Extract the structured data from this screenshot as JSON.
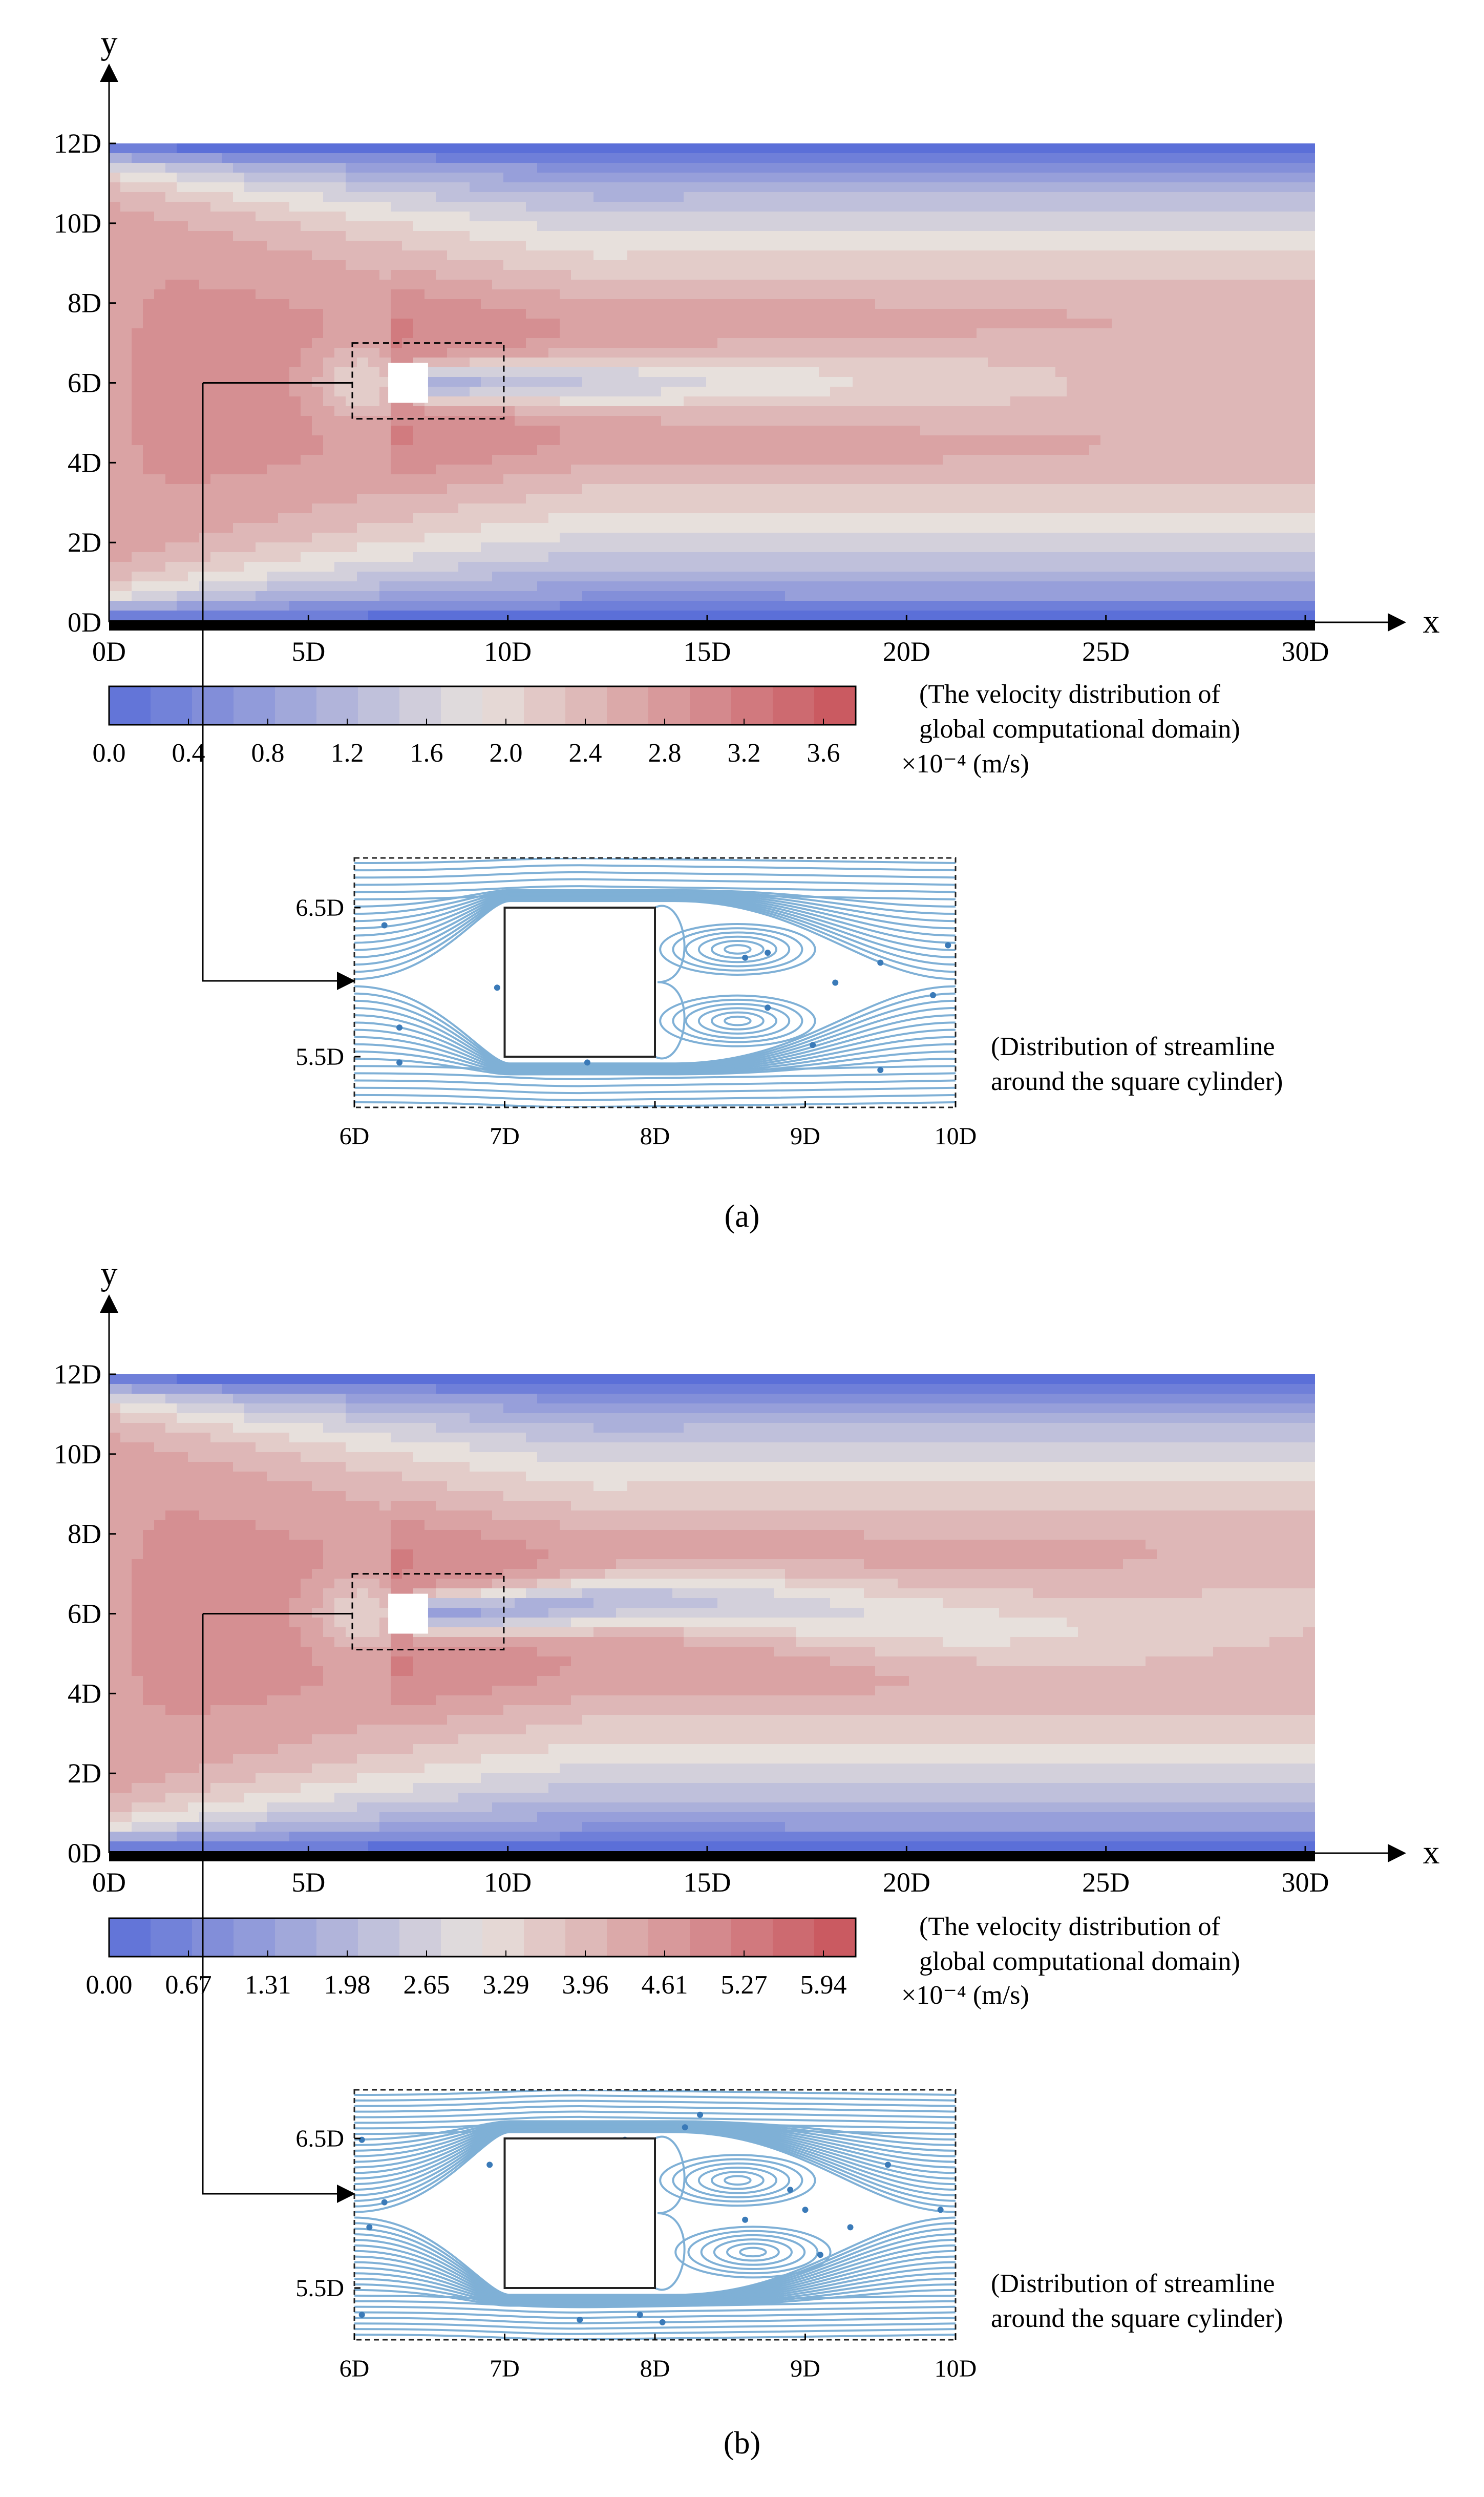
{
  "chart_data": [
    {
      "type": "heatmap",
      "panel_label": "(a)",
      "title": "(The velocity distribution of global computational domain)",
      "title_lines": [
        "(The velocity distribution of",
        "global computational domain)"
      ],
      "xlabel": "x",
      "ylabel": "y",
      "x_ticks": [
        "0D",
        "5D",
        "10D",
        "15D",
        "20D",
        "25D",
        "30D"
      ],
      "y_ticks": [
        "0D",
        "2D",
        "4D",
        "6D",
        "8D",
        "10D",
        "12D"
      ],
      "xlim": [
        0,
        30
      ],
      "ylim": [
        0,
        12
      ],
      "cylinder": {
        "x": [
          7,
          8
        ],
        "y": [
          5.5,
          6.5
        ]
      },
      "zoom_window": {
        "x": [
          6,
          10
        ],
        "y": [
          5.1,
          6.9
        ]
      },
      "colorbar": {
        "ticks": [
          "0.0",
          "0.4",
          "0.8",
          "1.2",
          "1.6",
          "2.0",
          "2.4",
          "2.8",
          "3.2",
          "3.6"
        ],
        "range": [
          0.0,
          3.75
        ],
        "unit": "×10⁻⁴ (m/s)"
      },
      "inset": {
        "type": "streamline",
        "title_lines": [
          "(Distribution of streamline",
          "around the square cylinder)"
        ],
        "x_ticks": [
          "6D",
          "7D",
          "8D",
          "9D",
          "10D"
        ],
        "y_ticks": [
          "6.5D",
          "5.5D"
        ]
      }
    },
    {
      "type": "heatmap",
      "panel_label": "(b)",
      "title": "(The velocity distribution of global computational domain)",
      "title_lines": [
        "(The velocity distribution of",
        "global computational domain)"
      ],
      "xlabel": "x",
      "ylabel": "y",
      "x_ticks": [
        "0D",
        "5D",
        "10D",
        "15D",
        "20D",
        "25D",
        "30D"
      ],
      "y_ticks": [
        "0D",
        "2D",
        "4D",
        "6D",
        "8D",
        "10D",
        "12D"
      ],
      "xlim": [
        0,
        30
      ],
      "ylim": [
        0,
        12
      ],
      "cylinder": {
        "x": [
          7,
          8
        ],
        "y": [
          5.5,
          6.5
        ]
      },
      "zoom_window": {
        "x": [
          6,
          10
        ],
        "y": [
          5.1,
          6.9
        ]
      },
      "colorbar": {
        "ticks": [
          "0.00",
          "0.67",
          "1.31",
          "1.98",
          "2.65",
          "3.29",
          "3.96",
          "4.61",
          "5.27",
          "5.94"
        ],
        "range": [
          0.0,
          5.94
        ],
        "unit": "×10⁻⁴ (m/s)"
      },
      "inset": {
        "type": "streamline",
        "title_lines": [
          "(Distribution of streamline",
          "around the square cylinder)"
        ],
        "x_ticks": [
          "6D",
          "7D",
          "8D",
          "9D",
          "10D"
        ],
        "y_ticks": [
          "6.5D",
          "5.5D"
        ]
      }
    }
  ],
  "colors": {
    "low": "#5b6fd8",
    "mid": "#e7e0dc",
    "high": "#c8525a",
    "streamline": "#7fb0d6",
    "streamline_dot": "#3a7ab8",
    "inset_bg": "#b5d0e8"
  }
}
